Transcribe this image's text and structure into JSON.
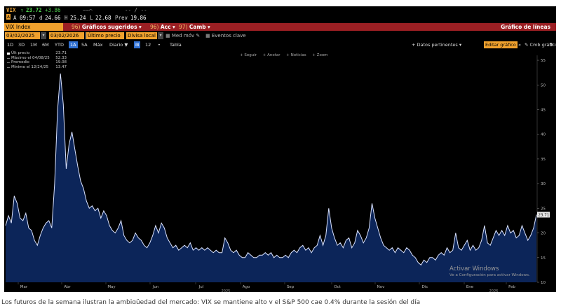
{
  "quote": {
    "ticker": "VIX",
    "arrow": "↑",
    "price": "23.72",
    "change": "+3.86",
    "spark": "~~⌒",
    "dashes": "-- / --",
    "ab": "A",
    "time": "09:57",
    "d_label": "d",
    "d_val": "24.66",
    "h_label": "H",
    "h_val": "25.24",
    "l_label": "L",
    "l_val": "22.68",
    "prev_label": "Prev",
    "prev_val": "19.86"
  },
  "header": {
    "ticker_field": "VIX Index",
    "menus": [
      {
        "num": "96)",
        "label": "Gráficos sugeridos",
        "caret": "▾"
      },
      {
        "num": "96)",
        "label": "Acc",
        "caret": "▾"
      },
      {
        "num": "97)",
        "label": "Camb",
        "caret": "▾"
      }
    ],
    "chart_type": "Gráfico de líneas"
  },
  "dates": {
    "start": "03/02/2025",
    "end": "03/02/2026",
    "price_field": "Último precio",
    "currency_field": "Divisa local",
    "moving_avg": "Med móv",
    "events": "Eventos clave"
  },
  "periods": {
    "items": [
      "1D",
      "3D",
      "1M",
      "6M",
      "YTD",
      "1A",
      "5A",
      "Máx"
    ],
    "active": "1A",
    "frequency": "Diario ▼",
    "chart_icon": "⊞",
    "count": "12",
    "table": "Tabla",
    "data_link": "+ Datos pertinentes ▾",
    "edit_chart": "Editar gráfico",
    "chart_settings": "✎ Cmb gráfico",
    "gear": "⚙"
  },
  "toolbar": {
    "items": [
      "+ Seguir",
      "+ Anotar",
      "+ Noticias",
      "+ Zoom"
    ]
  },
  "legend": {
    "rows": [
      {
        "label": "Últ precio",
        "value": "23.71",
        "color": "#ffffff"
      },
      {
        "label": "Máximo el 04/08/25",
        "value": "52.33",
        "color": "#888888"
      },
      {
        "label": "Promedio",
        "value": "19.08",
        "color": "#888888"
      },
      {
        "label": "Mínimo el 12/24/25",
        "value": "13.47",
        "color": "#888888"
      }
    ]
  },
  "watermark": {
    "line1": "Activar Windows",
    "line2": "Ve a Configuración para activar Windows."
  },
  "caption": "Los futuros de la semana ilustran la ambigüedad del mercado: VIX se mantiene alto y el S&P 500 cae 0,4% durante la sesión del día",
  "chart_data": {
    "type": "area",
    "ylim": [
      10,
      56
    ],
    "yticks": [
      "10",
      "15",
      "20",
      "25",
      "30",
      "35",
      "40",
      "45",
      "50",
      "55"
    ],
    "last_price_tag": "23.71",
    "month_labels": [
      "Mar",
      "Abr",
      "May",
      "Jun",
      "Jul",
      "Ago",
      "Sep",
      "Oct",
      "Nov",
      "Dic",
      "Ene",
      "Feb"
    ],
    "year_labels": [
      "2025",
      "2026"
    ],
    "series_color": "#d9e2ff",
    "fill_color": "#0c2559",
    "values": [
      21.5,
      23.5,
      22.0,
      27.5,
      26.0,
      23.0,
      22.5,
      24.0,
      21.0,
      20.5,
      18.5,
      17.5,
      19.5,
      21.0,
      22.0,
      22.5,
      21.0,
      30.0,
      45.0,
      52.3,
      46.0,
      33.0,
      38.0,
      40.5,
      37.0,
      33.5,
      30.5,
      29.0,
      26.5,
      25.0,
      25.5,
      24.5,
      25.0,
      23.0,
      24.5,
      23.5,
      21.5,
      20.5,
      20.0,
      21.0,
      22.5,
      19.5,
      18.5,
      18.0,
      18.5,
      20.0,
      19.0,
      18.5,
      17.5,
      17.0,
      18.0,
      19.5,
      21.5,
      20.0,
      22.0,
      21.0,
      19.0,
      18.0,
      17.0,
      17.5,
      16.5,
      17.0,
      17.5,
      17.0,
      18.0,
      16.5,
      17.0,
      16.5,
      17.0,
      16.5,
      17.0,
      16.5,
      16.0,
      16.5,
      16.0,
      16.0,
      19.0,
      18.0,
      16.5,
      16.0,
      16.5,
      15.5,
      15.0,
      15.0,
      16.0,
      15.5,
      15.0,
      15.0,
      15.5,
      15.5,
      16.0,
      15.5,
      16.0,
      15.0,
      15.5,
      15.0,
      15.0,
      15.5,
      15.0,
      16.0,
      16.5,
      16.0,
      17.0,
      17.5,
      16.5,
      17.0,
      16.0,
      17.0,
      17.5,
      19.5,
      17.5,
      19.5,
      25.0,
      21.0,
      19.0,
      17.5,
      18.0,
      17.0,
      18.5,
      19.0,
      17.0,
      18.0,
      20.5,
      19.5,
      18.0,
      19.0,
      21.0,
      26.0,
      23.0,
      21.0,
      19.0,
      17.5,
      17.0,
      16.5,
      17.0,
      16.0,
      17.0,
      16.5,
      16.0,
      17.0,
      16.5,
      15.5,
      15.0,
      14.0,
      13.5,
      14.5,
      14.0,
      15.0,
      15.0,
      14.5,
      15.5,
      16.0,
      15.5,
      17.0,
      16.0,
      16.5,
      20.0,
      17.0,
      16.5,
      17.5,
      18.5,
      16.5,
      17.5,
      16.5,
      17.0,
      18.5,
      21.5,
      18.0,
      17.5,
      19.0,
      20.5,
      19.5,
      20.5,
      19.5,
      21.5,
      20.0,
      20.5,
      19.0,
      19.5,
      21.5,
      20.0,
      18.5,
      19.5,
      21.0,
      23.7
    ]
  }
}
